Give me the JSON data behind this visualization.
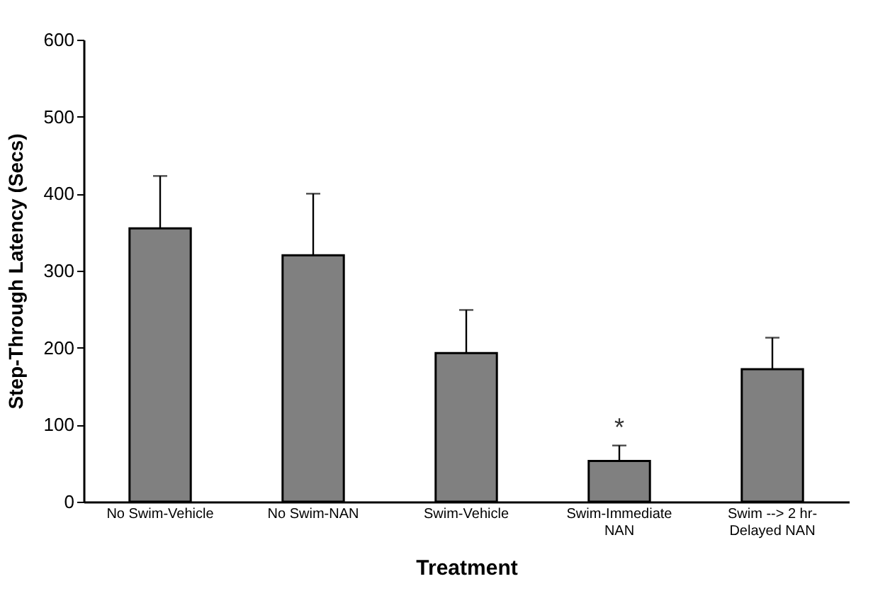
{
  "chart_data": {
    "type": "bar",
    "xlabel": "Treatment",
    "ylabel": "Step-Through Latency (Secs)",
    "categories": [
      "No Swim-Vehicle",
      "No Swim-NAN",
      "Swim-Vehicle",
      "Swim-Immediate NAN",
      "Swim --> 2 hr-Delayed NAN"
    ],
    "values": [
      355,
      320,
      193,
      53,
      172
    ],
    "errors": [
      [
        355,
        423
      ],
      [
        320,
        400
      ],
      [
        193,
        249
      ],
      [
        53,
        73
      ],
      [
        172,
        213
      ]
    ],
    "color": "#808080",
    "ylim": [
      0,
      600
    ],
    "yticks": [
      0,
      100,
      200,
      300,
      400,
      500,
      600
    ],
    "grid": false,
    "annotations": [
      {
        "text": "*",
        "x": "Swim-Immediate NAN",
        "y": 73
      }
    ]
  }
}
